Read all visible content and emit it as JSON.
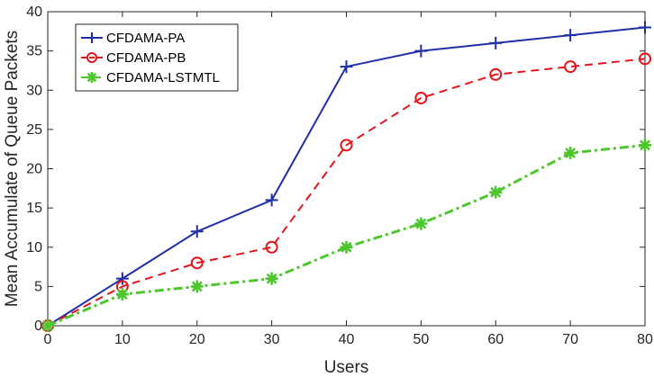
{
  "chart_data": {
    "type": "line",
    "title": "",
    "xlabel": "Users",
    "ylabel": "Mean Accumulate of Queue Packets",
    "x": [
      0,
      10,
      20,
      30,
      40,
      50,
      60,
      70,
      80
    ],
    "xlim": [
      0,
      80
    ],
    "ylim": [
      0,
      40
    ],
    "xticks": [
      0,
      10,
      20,
      30,
      40,
      50,
      60,
      70,
      80
    ],
    "yticks": [
      0,
      5,
      10,
      15,
      20,
      25,
      30,
      35,
      40
    ],
    "grid": false,
    "legend_position": "top-left",
    "series": [
      {
        "name": "CFDAMA-PA",
        "values": [
          0,
          6,
          12,
          16,
          33,
          35,
          36,
          37,
          38
        ],
        "color": "#1f2fa8",
        "line_style": "solid",
        "marker": "plus"
      },
      {
        "name": "CFDAMA-PB",
        "values": [
          0,
          5,
          8,
          10,
          23,
          29,
          32,
          33,
          34
        ],
        "color": "#e8141c",
        "line_style": "dashed",
        "marker": "circle"
      },
      {
        "name": "CFDAMA-LSTMTL",
        "values": [
          0,
          4,
          5,
          6,
          10,
          13,
          17,
          22,
          23
        ],
        "color": "#4ec72f",
        "line_style": "dashdot",
        "marker": "asterisk"
      }
    ]
  }
}
